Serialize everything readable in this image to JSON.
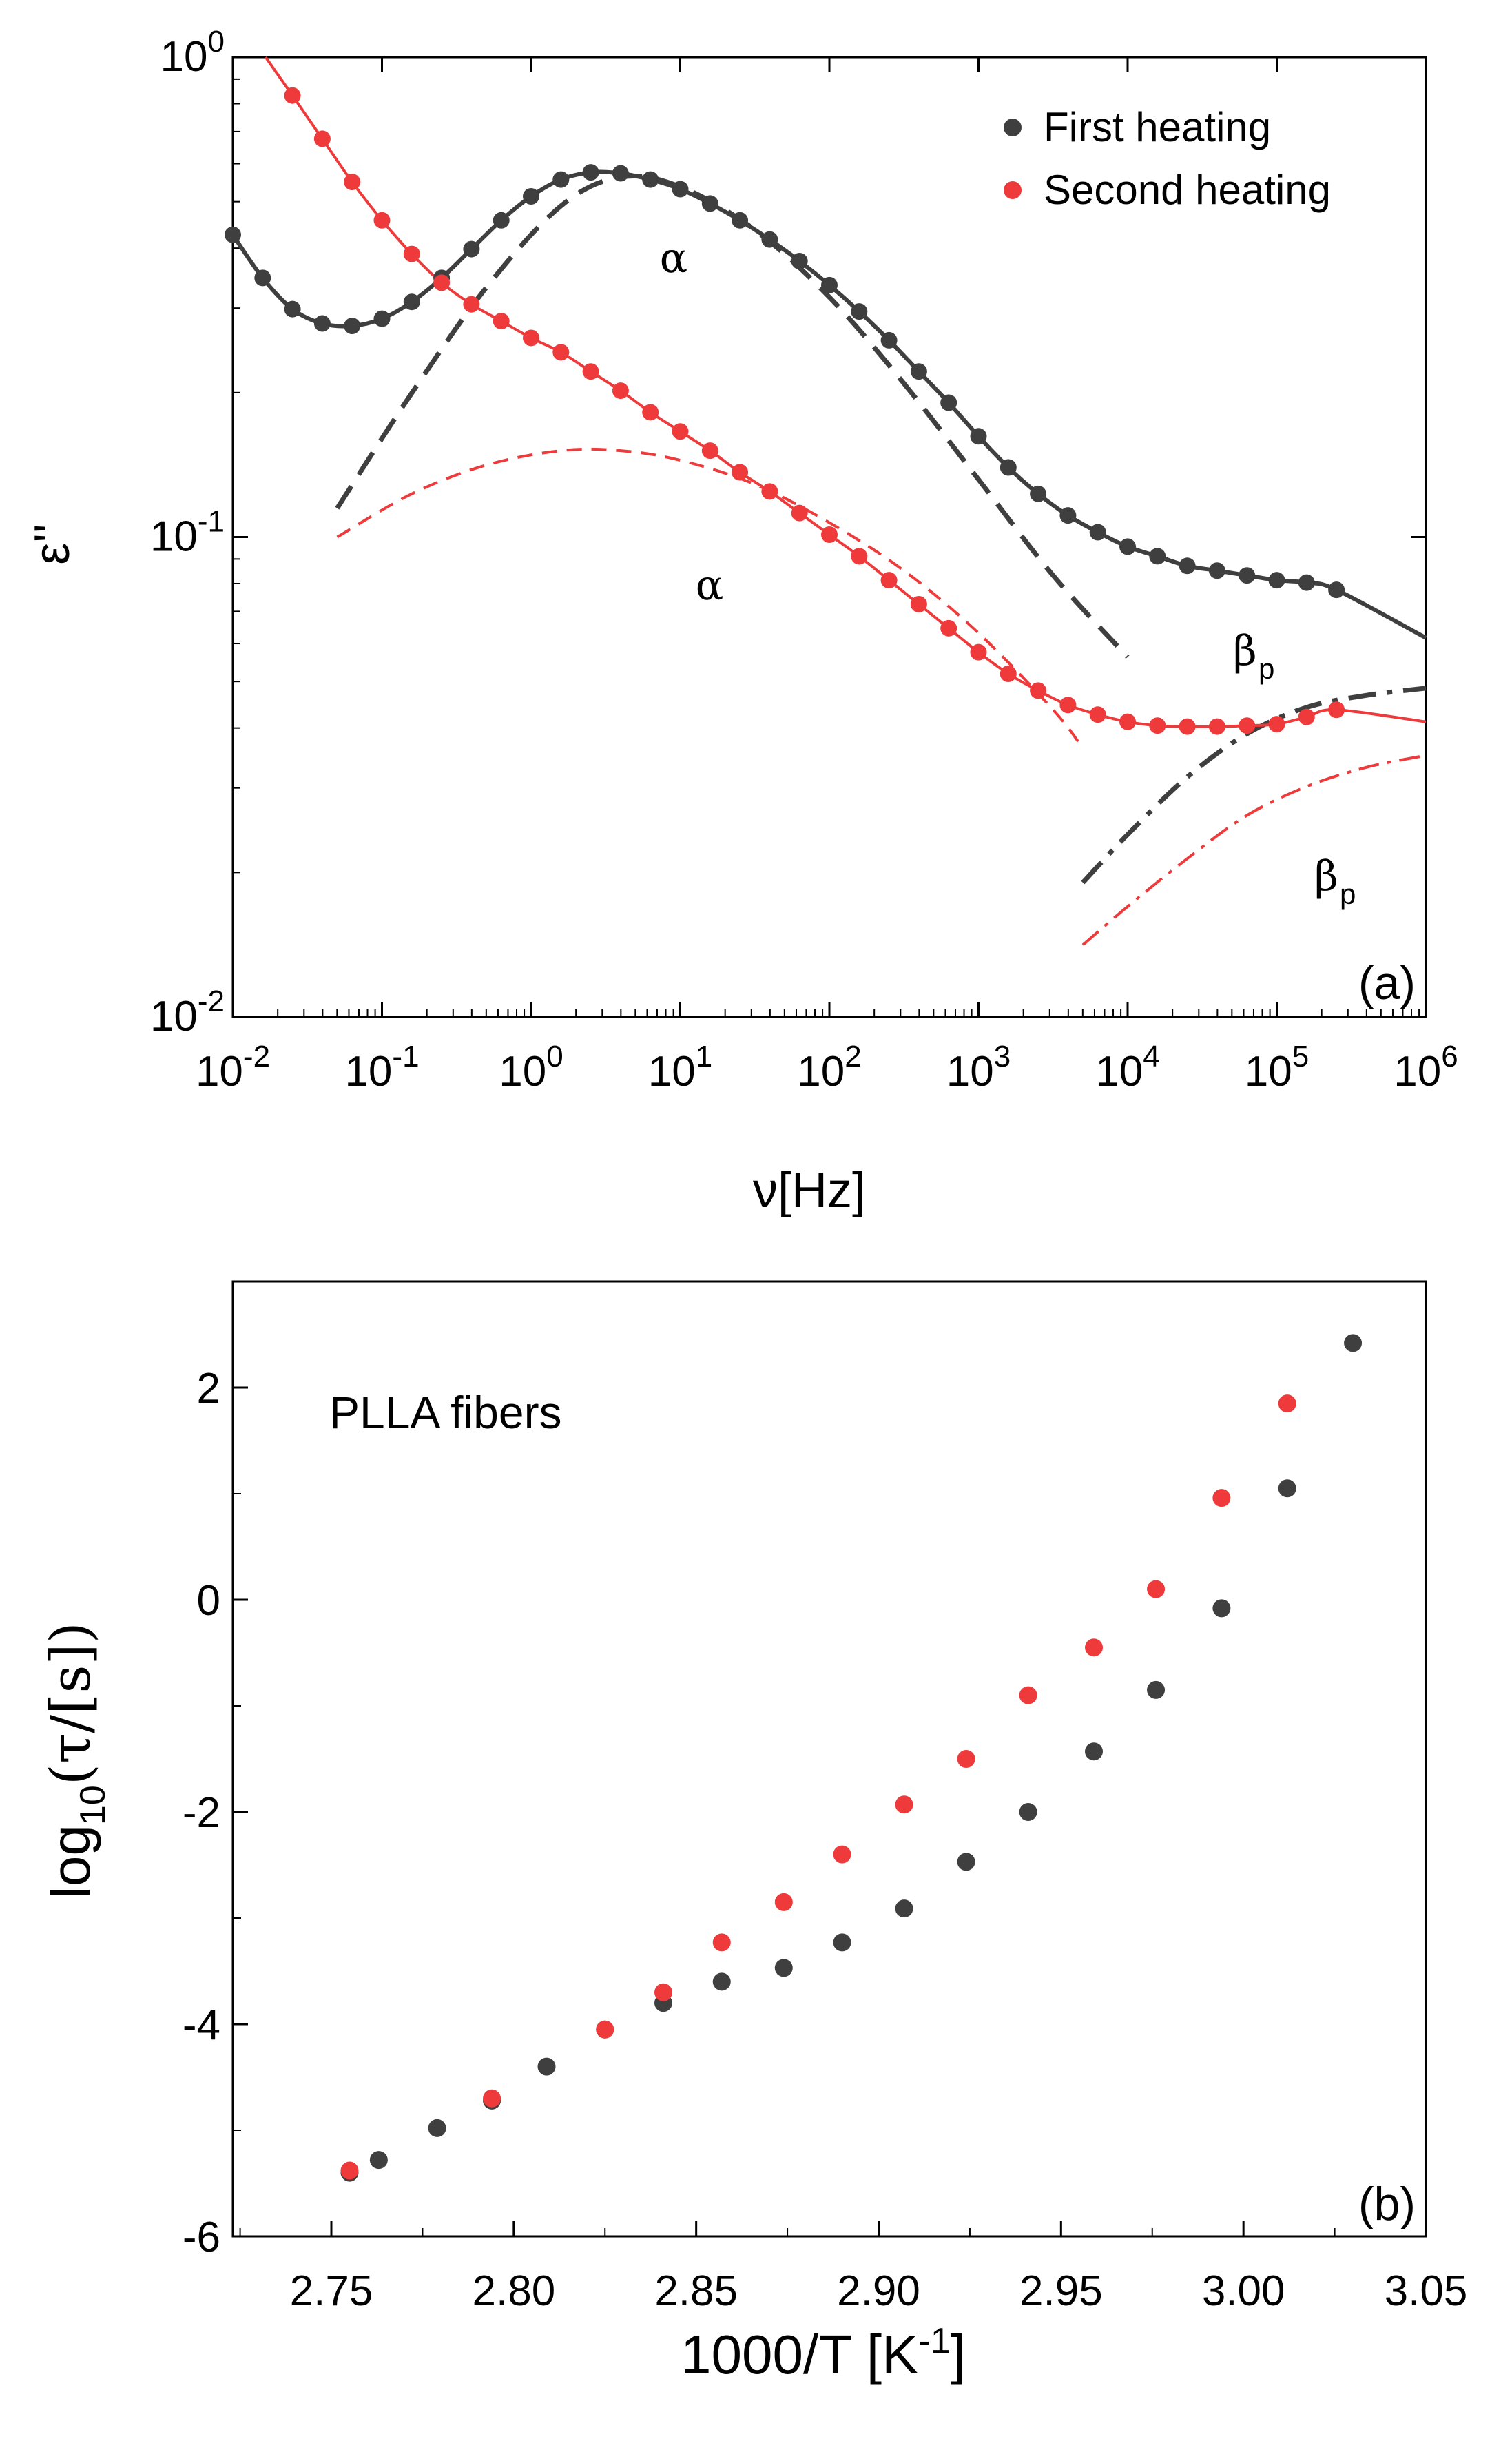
{
  "colors": {
    "first": "#3f3f3f",
    "second": "#ee3a3a",
    "axis": "#000000"
  },
  "chart_data": [
    {
      "panel": "a",
      "type": "scatter",
      "scale": "log-log",
      "panel_label": "(a)",
      "xlabel": "ν[Hz]",
      "ylabel": "ε''",
      "xlim": [
        -2,
        6
      ],
      "ylim": [
        -2,
        0
      ],
      "x_ticks": [
        {
          "base": "10",
          "exp": "-2"
        },
        {
          "base": "10",
          "exp": "-1"
        },
        {
          "base": "10",
          "exp": "0"
        },
        {
          "base": "10",
          "exp": "1"
        },
        {
          "base": "10",
          "exp": "2"
        },
        {
          "base": "10",
          "exp": "3"
        },
        {
          "base": "10",
          "exp": "4"
        },
        {
          "base": "10",
          "exp": "5"
        },
        {
          "base": "10",
          "exp": "6"
        }
      ],
      "y_ticks": [
        {
          "base": "10",
          "exp": "-2"
        },
        {
          "base": "10",
          "exp": "-1"
        },
        {
          "base": "10",
          "exp": "0"
        }
      ],
      "legend": {
        "position": "top-right",
        "entries": [
          {
            "label": "First heating",
            "series": "first"
          },
          {
            "label": "Second heating",
            "series": "second"
          }
        ]
      },
      "annotations": [
        {
          "text": "α",
          "series": "first"
        },
        {
          "text": "α",
          "series": "second"
        },
        {
          "text": "β",
          "sub": "p",
          "series": "first"
        },
        {
          "text": "β",
          "sub": "p",
          "series": "second"
        }
      ],
      "series": [
        {
          "name": "First heating",
          "key": "first",
          "log_x": [
            -2.0,
            -1.8,
            -1.6,
            -1.4,
            -1.2,
            -1.0,
            -0.8,
            -0.6,
            -0.4,
            -0.2,
            0.0,
            0.2,
            0.4,
            0.6,
            0.8,
            1.0,
            1.2,
            1.4,
            1.6,
            1.8,
            2.0,
            2.2,
            2.4,
            2.6,
            2.8,
            3.0,
            3.2,
            3.4,
            3.6,
            3.8,
            4.0,
            4.2,
            4.4,
            4.6,
            4.8,
            5.0,
            5.2,
            5.4
          ],
          "log_y": [
            -0.37,
            -0.46,
            -0.525,
            -0.555,
            -0.56,
            -0.545,
            -0.51,
            -0.46,
            -0.4,
            -0.34,
            -0.29,
            -0.255,
            -0.24,
            -0.242,
            -0.255,
            -0.275,
            -0.305,
            -0.34,
            -0.38,
            -0.425,
            -0.475,
            -0.53,
            -0.59,
            -0.655,
            -0.72,
            -0.79,
            -0.855,
            -0.91,
            -0.955,
            -0.99,
            -1.02,
            -1.04,
            -1.06,
            -1.07,
            -1.08,
            -1.09,
            -1.095,
            -1.11
          ]
        },
        {
          "name": "Second heating",
          "key": "second",
          "log_x": [
            -1.6,
            -1.4,
            -1.2,
            -1.0,
            -0.8,
            -0.6,
            -0.4,
            -0.2,
            0.0,
            0.2,
            0.4,
            0.6,
            0.8,
            1.0,
            1.2,
            1.4,
            1.6,
            1.8,
            2.0,
            2.2,
            2.4,
            2.6,
            2.8,
            3.0,
            3.2,
            3.4,
            3.6,
            3.8,
            4.0,
            4.2,
            4.4,
            4.6,
            4.8,
            5.0,
            5.2,
            5.4
          ],
          "log_y": [
            -0.08,
            -0.17,
            -0.26,
            -0.34,
            -0.41,
            -0.47,
            -0.515,
            -0.55,
            -0.585,
            -0.615,
            -0.655,
            -0.695,
            -0.74,
            -0.78,
            -0.82,
            -0.865,
            -0.905,
            -0.95,
            -0.995,
            -1.04,
            -1.09,
            -1.14,
            -1.19,
            -1.24,
            -1.285,
            -1.32,
            -1.35,
            -1.37,
            -1.385,
            -1.393,
            -1.395,
            -1.395,
            -1.393,
            -1.39,
            -1.375,
            -1.36
          ]
        }
      ],
      "fit_components": {
        "first_alpha_dashed_log_x": [
          -1.3,
          -0.8,
          -0.3,
          0.2,
          0.6,
          1.0,
          1.5,
          2.0,
          2.5,
          3.0,
          3.5,
          4.0
        ],
        "first_alpha_dashed_log_y": [
          -0.94,
          -0.7,
          -0.48,
          -0.31,
          -0.25,
          -0.27,
          -0.36,
          -0.5,
          -0.68,
          -0.88,
          -1.08,
          -1.25
        ],
        "second_alpha_dashed_log_x": [
          -1.3,
          -0.8,
          -0.3,
          0.2,
          0.6,
          1.0,
          1.5,
          2.0,
          2.5,
          3.0,
          3.5,
          3.7
        ],
        "second_alpha_dashed_log_y": [
          -1.0,
          -0.91,
          -0.85,
          -0.82,
          -0.82,
          -0.84,
          -0.89,
          -0.97,
          -1.07,
          -1.2,
          -1.36,
          -1.44
        ],
        "first_beta_dashdot_log_x": [
          3.7,
          4.0,
          4.4,
          4.8,
          5.2,
          5.6,
          6.0
        ],
        "first_beta_dashdot_log_y": [
          -1.72,
          -1.62,
          -1.5,
          -1.41,
          -1.355,
          -1.33,
          -1.315
        ],
        "second_beta_dashdot_log_x": [
          3.7,
          4.0,
          4.4,
          4.8,
          5.2,
          5.6,
          6.0
        ],
        "second_beta_dashdot_log_y": [
          -1.85,
          -1.77,
          -1.67,
          -1.58,
          -1.52,
          -1.48,
          -1.455
        ]
      }
    },
    {
      "panel": "b",
      "type": "scatter",
      "panel_label": "(b)",
      "annotation": "PLLA fibers",
      "xlabel": "1000/T [K",
      "xlabel_sup": "-1",
      "xlabel_end": "]",
      "ylabel": "log",
      "ylabel_sub": "10",
      "ylabel_end": "(τ/[s])",
      "xlim": [
        2.723,
        3.05
      ],
      "ylim": [
        -6,
        3
      ],
      "x_ticks": [
        "2.75",
        "2.80",
        "2.85",
        "2.90",
        "2.95",
        "3.00",
        "3.05"
      ],
      "y_ticks": [
        "-6",
        "-4",
        "-2",
        "0",
        "2"
      ],
      "series": [
        {
          "name": "First heating",
          "key": "first",
          "x": [
            2.755,
            2.763,
            2.779,
            2.794,
            2.809,
            2.825,
            2.841,
            2.857,
            2.874,
            2.89,
            2.907,
            2.924,
            2.941,
            2.959,
            2.976,
            2.994,
            3.012,
            3.03
          ],
          "y": [
            -5.4,
            -5.28,
            -4.98,
            -4.72,
            -4.4,
            -4.05,
            -3.8,
            -3.6,
            -3.47,
            -3.23,
            -2.91,
            -2.47,
            -2.0,
            -1.43,
            -0.85,
            -0.08,
            1.05,
            2.42
          ]
        },
        {
          "name": "Second heating",
          "key": "second",
          "x": [
            2.755,
            2.794,
            2.825,
            2.841,
            2.857,
            2.874,
            2.89,
            2.907,
            2.924,
            2.941,
            2.959,
            2.976,
            2.994,
            3.012
          ],
          "y": [
            -5.38,
            -4.7,
            -4.05,
            -3.7,
            -3.23,
            -2.85,
            -2.4,
            -1.93,
            -1.5,
            -0.9,
            -0.45,
            0.1,
            0.96,
            1.85
          ]
        }
      ]
    }
  ]
}
